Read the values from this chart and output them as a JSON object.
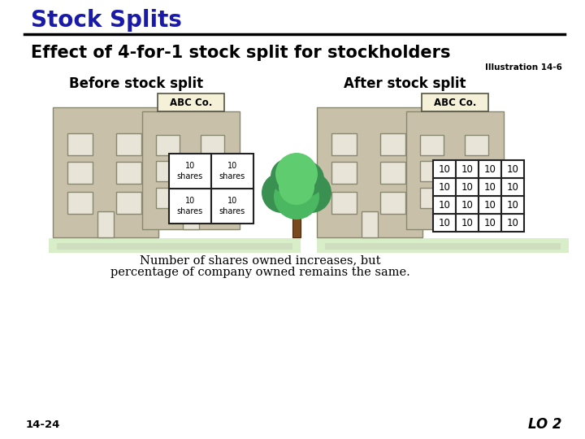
{
  "title": "Stock Splits",
  "subtitle": "Effect of 4-for-1 stock split for stockholders",
  "illustration": "Illustration 14-6",
  "before_label": "Before stock split",
  "after_label": "After stock split",
  "abc_label": "ABC Co.",
  "before_shares": [
    [
      "10\nshares",
      "10\nshares"
    ],
    [
      "10\nshares",
      "10\nshares"
    ]
  ],
  "after_shares": [
    [
      "10",
      "10",
      "10",
      "10"
    ],
    [
      "10",
      "10",
      "10",
      "10"
    ],
    [
      "10",
      "10",
      "10",
      "10"
    ],
    [
      "10",
      "10",
      "10",
      "10"
    ]
  ],
  "caption_line1": "Number of shares owned increases, but",
  "caption_line2": "percentage of company owned remains the same.",
  "footer_left": "14-24",
  "footer_right": "LO 2",
  "title_color": "#1a1aaa",
  "subtitle_color": "#000000",
  "building_color": "#c8c0a8",
  "building_outline": "#888870",
  "window_color": "#e8e4d8",
  "window_outline": "#888870",
  "grid_color": "#ffffff",
  "grid_outline": "#222222",
  "abc_bg": "#f5f0d8",
  "abc_outline": "#555544",
  "tree_trunk": "#7a4a1f",
  "tree_green_dark": "#3a9050",
  "tree_green_mid": "#4ab860",
  "tree_green_light": "#60cc70",
  "ground_color": "#d8eec8",
  "shadow_color": "#c0c8b0",
  "bg_color": "#ffffff"
}
